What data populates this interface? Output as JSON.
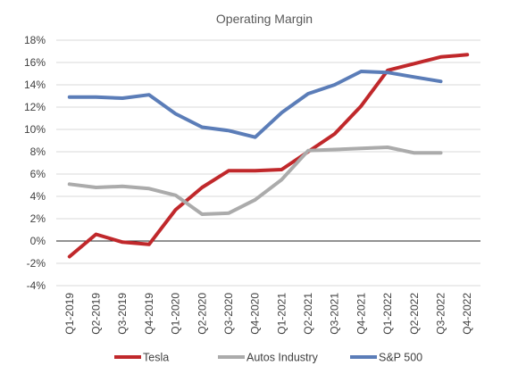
{
  "chart_data": {
    "type": "line",
    "title": "Operating Margin",
    "xlabel": "",
    "ylabel": "",
    "categories": [
      "Q1-2019",
      "Q2-2019",
      "Q3-2019",
      "Q4-2019",
      "Q1-2020",
      "Q2-2020",
      "Q3-2020",
      "Q4-2020",
      "Q1-2021",
      "Q2-2021",
      "Q3-2021",
      "Q4-2021",
      "Q1-2022",
      "Q2-2022",
      "Q3-2022",
      "Q4-2022"
    ],
    "ylim": [
      -4,
      18
    ],
    "yticks": [
      -4,
      -2,
      0,
      2,
      4,
      6,
      8,
      10,
      12,
      14,
      16,
      18
    ],
    "ytick_labels": [
      "-4%",
      "-2%",
      "0%",
      "2%",
      "4%",
      "6%",
      "8%",
      "10%",
      "12%",
      "14%",
      "16%",
      "18%"
    ],
    "grid": true,
    "legend_position": "bottom",
    "series": [
      {
        "name": "Tesla",
        "color": "#C0282B",
        "values": [
          -1.4,
          0.6,
          -0.1,
          -0.3,
          2.8,
          4.8,
          6.3,
          6.3,
          6.4,
          8.0,
          9.6,
          12.1,
          15.3,
          15.9,
          16.5,
          16.7
        ]
      },
      {
        "name": "Autos Industry",
        "color": "#ABABAB",
        "values": [
          5.1,
          4.8,
          4.9,
          4.7,
          4.1,
          2.4,
          2.5,
          3.7,
          5.5,
          8.1,
          8.2,
          8.3,
          8.4,
          7.9,
          7.9,
          null
        ]
      },
      {
        "name": "S&P 500",
        "color": "#5B7DB8",
        "values": [
          12.9,
          12.9,
          12.8,
          13.1,
          11.4,
          10.2,
          9.9,
          9.3,
          11.5,
          13.2,
          14.0,
          15.2,
          15.1,
          14.7,
          14.3,
          null
        ]
      }
    ]
  }
}
